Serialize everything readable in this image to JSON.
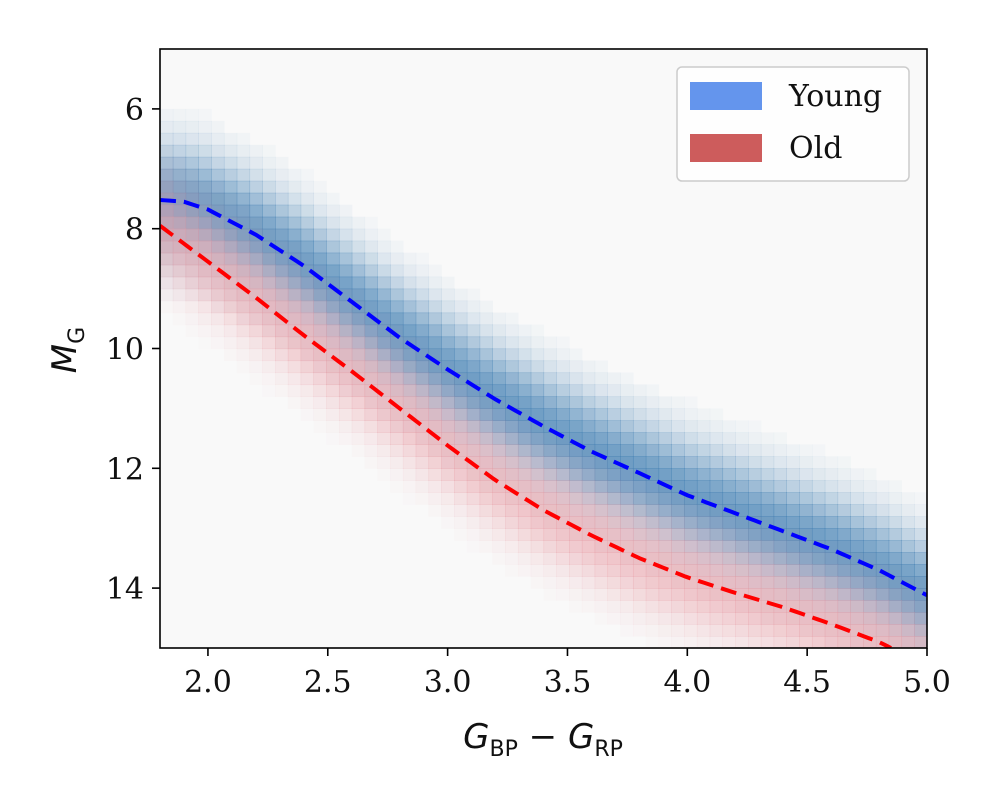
{
  "chart_data": {
    "type": "density",
    "title": "",
    "xlabel": {
      "main": "G",
      "sub1": "BP",
      "minus": " − ",
      "main2": "G",
      "sub2": "RP"
    },
    "ylabel": {
      "main": "M",
      "sub": "G"
    },
    "xlim": [
      1.8,
      5.0
    ],
    "ylim": [
      15.0,
      5.0
    ],
    "y_inverted": true,
    "x_ticks": [
      2.0,
      2.5,
      3.0,
      3.5,
      4.0,
      4.5,
      5.0
    ],
    "x_tick_labels": [
      "2.0",
      "2.5",
      "3.0",
      "3.5",
      "4.0",
      "4.5",
      "5.0"
    ],
    "y_ticks": [
      6,
      8,
      10,
      12,
      14
    ],
    "y_tick_labels": [
      "6",
      "8",
      "10",
      "12",
      "14"
    ],
    "legend_position": "top-right",
    "series": [
      {
        "name": "Young",
        "legend_label": "Young",
        "color": "#6495ed",
        "density_color": "#4682b4",
        "line_color": "#0000ff",
        "line_style": "dashed",
        "x": [
          1.8,
          1.9,
          2.0,
          2.2,
          2.4,
          2.6,
          2.8,
          3.0,
          3.2,
          3.4,
          3.6,
          3.8,
          4.0,
          4.2,
          4.4,
          4.6,
          4.8,
          5.0
        ],
        "y": [
          7.52,
          7.55,
          7.68,
          8.1,
          8.62,
          9.22,
          9.82,
          10.35,
          10.85,
          11.3,
          11.72,
          12.08,
          12.45,
          12.75,
          13.05,
          13.35,
          13.7,
          14.12
        ]
      },
      {
        "name": "Old",
        "legend_label": "Old",
        "color": "#cd5c5c",
        "density_color": "#e8a0a8",
        "line_color": "#ff0000",
        "line_style": "dashed",
        "x": [
          1.8,
          2.0,
          2.2,
          2.4,
          2.6,
          2.8,
          3.0,
          3.2,
          3.4,
          3.6,
          3.8,
          4.0,
          4.2,
          4.4,
          4.6,
          4.8,
          4.85
        ],
        "y": [
          7.95,
          8.55,
          9.15,
          9.78,
          10.38,
          11.0,
          11.62,
          12.2,
          12.7,
          13.12,
          13.5,
          13.82,
          14.08,
          14.32,
          14.6,
          14.9,
          15.0
        ]
      }
    ]
  }
}
